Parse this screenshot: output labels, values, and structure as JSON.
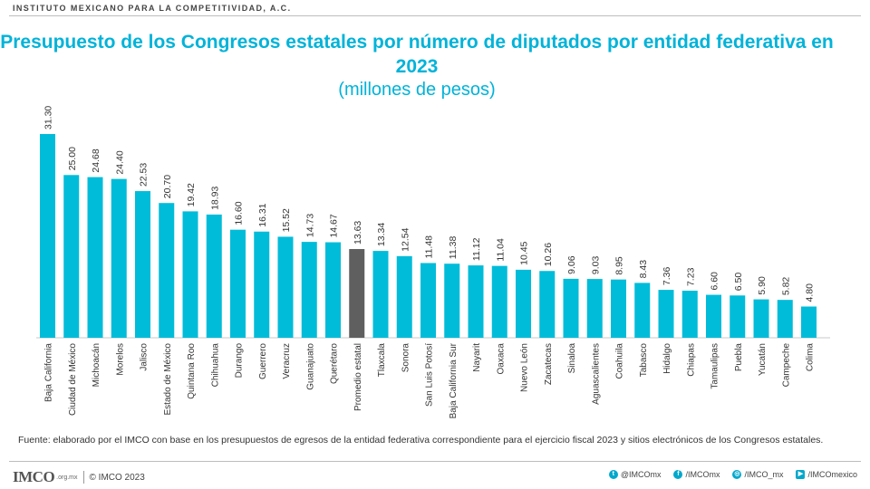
{
  "header": {
    "org": "INSTITUTO MEXICANO PARA LA COMPETITIVIDAD, A.C."
  },
  "chart_data": {
    "type": "bar",
    "title": "Presupuesto de los Congresos estatales por número de diputados por entidad federativa en 2023",
    "subtitle": "(millones de pesos)",
    "categories": [
      "Baja California",
      "Ciudad de México",
      "Michoacán",
      "Morelos",
      "Jalisco",
      "Estado de México",
      "Quintana Roo",
      "Chihuahua",
      "Durango",
      "Guerrero",
      "Veracruz",
      "Guanajuato",
      "Querétaro",
      "Promedio estatal",
      "Tlaxcala",
      "Sonora",
      "San Luis Potosí",
      "Baja California Sur",
      "Nayarit",
      "Oaxaca",
      "Nuevo León",
      "Zacatecas",
      "Sinaloa",
      "Aguascalientes",
      "Coahuila",
      "Tabasco",
      "Hidalgo",
      "Chiapas",
      "Tamaulipas",
      "Puebla",
      "Yucatán",
      "Campeche",
      "Colima"
    ],
    "values": [
      31.3,
      25.0,
      24.68,
      24.4,
      22.53,
      20.7,
      19.42,
      18.93,
      16.6,
      16.31,
      15.52,
      14.73,
      14.67,
      13.63,
      13.34,
      12.54,
      11.48,
      11.38,
      11.12,
      11.04,
      10.45,
      10.26,
      9.06,
      9.03,
      8.95,
      8.43,
      7.36,
      7.23,
      6.6,
      6.5,
      5.9,
      5.82,
      4.8
    ],
    "value_labels": [
      "31.30",
      "25.00",
      "24.68",
      "24.40",
      "22.53",
      "20.70",
      "19.42",
      "18.93",
      "16.60",
      "16.31",
      "15.52",
      "14.73",
      "14.67",
      "13.63",
      "13.34",
      "12.54",
      "11.48",
      "11.38",
      "11.12",
      "11.04",
      "10.45",
      "10.26",
      "9.06",
      "9.03",
      "8.95",
      "8.43",
      "7.36",
      "7.23",
      "6.60",
      "6.50",
      "5.90",
      "5.82",
      "4.80"
    ],
    "highlight_category": "Promedio estatal",
    "colors": {
      "bar": "#00bcd9",
      "highlight": "#5f5f5f"
    },
    "ylim": [
      0,
      31.3
    ],
    "grid": false,
    "legend": "none"
  },
  "source": "Fuente: elaborado por el IMCO con base en los presupuestos de egresos de la entidad federativa correspondiente para el ejercicio fiscal 2023 y sitios electrónicos de los Congresos estatales.",
  "footer": {
    "logo": "IMCO",
    "logo_domain": ".org.mx",
    "copyright": "© IMCO 2023",
    "social": [
      {
        "icon": "twitter-icon",
        "glyph": "t",
        "label": "@IMCOmx"
      },
      {
        "icon": "facebook-icon",
        "glyph": "f",
        "label": "/IMCOmx"
      },
      {
        "icon": "instagram-icon",
        "glyph": "◎",
        "label": "/IMCO_mx"
      },
      {
        "icon": "youtube-icon",
        "glyph": "▶",
        "label": "/IMCOmexico"
      }
    ]
  }
}
